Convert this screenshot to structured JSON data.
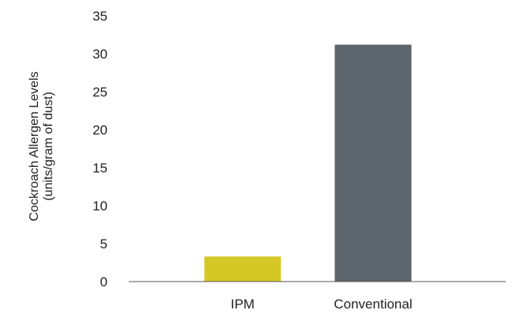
{
  "chart_data": {
    "type": "bar",
    "categories": [
      "IPM",
      "Conventional"
    ],
    "values": [
      3.3,
      31.2
    ],
    "ylabel_line1": "Cockroach Allergen Levels",
    "ylabel_line2": "(units/gram of dust)",
    "ylim": [
      0,
      35
    ],
    "yticks": [
      "0",
      "5",
      "10",
      "15",
      "20",
      "25",
      "30",
      "35"
    ],
    "grid": false,
    "legend": "none",
    "colors": [
      "#d5c825",
      "#5c656b"
    ]
  }
}
